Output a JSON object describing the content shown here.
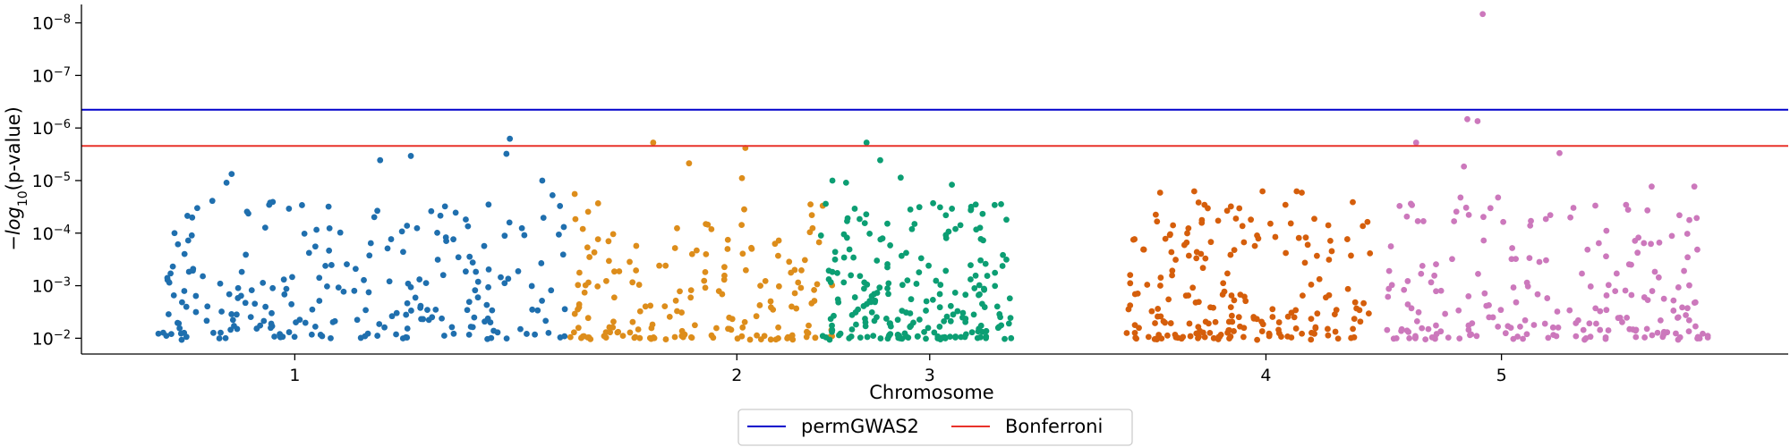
{
  "chart_data": {
    "type": "scatter",
    "title": "",
    "xlabel": "Chromosome",
    "ylabel_prefix": "−",
    "ylabel_log": "log",
    "ylabel_sub": "10",
    "ylabel_suffix": "(p-value)",
    "y_scale": "neg-log10",
    "ylim_exponent": [
      -1.7,
      -8.35
    ],
    "y_ticks": [
      {
        "exp": -2,
        "base": "10",
        "sup": "−2"
      },
      {
        "exp": -3,
        "base": "10",
        "sup": "−3"
      },
      {
        "exp": -4,
        "base": "10",
        "sup": "−4"
      },
      {
        "exp": -5,
        "base": "10",
        "sup": "−5"
      },
      {
        "exp": -6,
        "base": "10",
        "sup": "−6"
      },
      {
        "exp": -7,
        "base": "10",
        "sup": "−7"
      },
      {
        "exp": -8,
        "base": "10",
        "sup": "−8"
      }
    ],
    "x_ticks": [
      {
        "label": "1",
        "pos": 0.125
      },
      {
        "label": "2",
        "pos": 0.384
      },
      {
        "label": "3",
        "pos": 0.497
      },
      {
        "label": "4",
        "pos": 0.694
      },
      {
        "label": "5",
        "pos": 0.832
      }
    ],
    "thresholds": [
      {
        "name": "permGWAS2",
        "color": "#0000cc",
        "p": 4.5e-07
      },
      {
        "name": "Bonferroni",
        "color": "#e8322a",
        "p": 2.2e-06
      }
    ],
    "legend_placement": "bottom-center",
    "chromosomes": [
      {
        "name": "1",
        "color": "#1f6fae",
        "x_start": 0.045,
        "x_end": 0.285,
        "count": 230,
        "seed": 11,
        "peaks": [
          [
            0.085,
            1.1e-05
          ],
          [
            0.088,
            7.5e-06
          ],
          [
            0.097,
            3.9e-05
          ],
          [
            0.11,
            2.9e-05
          ],
          [
            0.175,
            4.1e-06
          ],
          [
            0.193,
            3.4e-06
          ],
          [
            0.213,
            3.1e-05
          ],
          [
            0.249,
            3.1e-06
          ],
          [
            0.251,
            1.6e-06
          ],
          [
            0.27,
            1e-05
          ],
          [
            0.276,
            1.9e-05
          ]
        ]
      },
      {
        "name": "2",
        "color": "#dd8d1b",
        "x_start": 0.285,
        "x_end": 0.44,
        "count": 175,
        "seed": 23,
        "peaks": [
          [
            0.289,
            1.8e-05
          ],
          [
            0.335,
            1.9e-06
          ],
          [
            0.356,
            4.7e-06
          ],
          [
            0.387,
            9e-06
          ],
          [
            0.389,
            2.4e-06
          ]
        ]
      },
      {
        "name": "3",
        "color": "#0c9e73",
        "x_start": 0.432,
        "x_end": 0.545,
        "count": 215,
        "seed": 37,
        "peaks": [
          [
            0.44,
            1e-05
          ],
          [
            0.448,
            1.1e-05
          ],
          [
            0.46,
            1.9e-06
          ],
          [
            0.468,
            4.1e-06
          ],
          [
            0.48,
            8.8e-06
          ],
          [
            0.499,
            2.7e-05
          ],
          [
            0.51,
            1.2e-05
          ],
          [
            0.528,
            4.3e-05
          ]
        ]
      },
      {
        "name": "4",
        "color": "#d55e0b",
        "x_start": 0.612,
        "x_end": 0.755,
        "count": 200,
        "seed": 51,
        "peaks": [
          [
            0.632,
            1.7e-05
          ],
          [
            0.652,
            1.6e-05
          ],
          [
            0.658,
            2.9e-05
          ],
          [
            0.666,
            5.8e-05
          ],
          [
            0.692,
            1.6e-05
          ],
          [
            0.712,
            1.6e-05
          ],
          [
            0.715,
            1.7e-05
          ]
        ]
      },
      {
        "name": "5",
        "color": "#cc78bc",
        "x_start": 0.765,
        "x_end": 0.955,
        "count": 200,
        "seed": 67,
        "peaks": [
          [
            0.782,
            1.9e-06
          ],
          [
            0.808,
            2.1e-05
          ],
          [
            0.81,
            5.4e-06
          ],
          [
            0.812,
            6.8e-07
          ],
          [
            0.818,
            7.4e-07
          ],
          [
            0.821,
            6.8e-09
          ],
          [
            0.83,
            2.1e-05
          ],
          [
            0.858,
            5.4e-05
          ],
          [
            0.866,
            3e-06
          ],
          [
            0.887,
            3e-05
          ],
          [
            0.905,
            2.9e-05
          ],
          [
            0.92,
            1.3e-05
          ],
          [
            0.945,
            1.3e-05
          ]
        ]
      }
    ]
  }
}
